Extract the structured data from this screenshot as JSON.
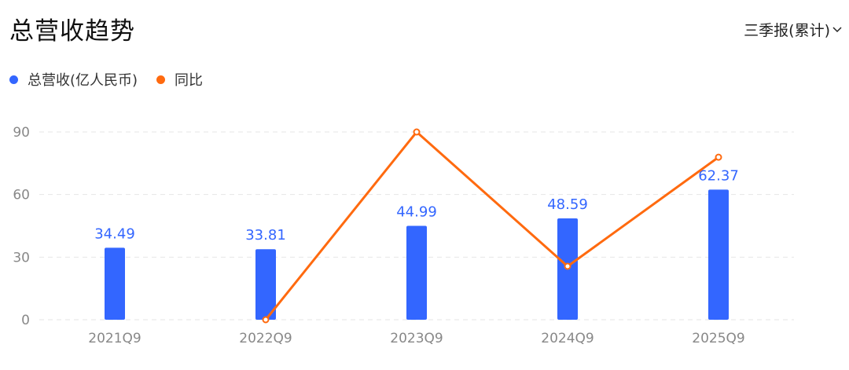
{
  "header": {
    "title": "总营收趋势",
    "period_selector": "三季报(累计)"
  },
  "colors": {
    "revenue": "#3366ff",
    "yoy": "#ff6a0f",
    "grid": "#e6e6e6",
    "axis_text": "#888888"
  },
  "chart_data": {
    "type": "bar+line",
    "categories": [
      "2021Q9",
      "2022Q9",
      "2023Q9",
      "2024Q9",
      "2025Q9"
    ],
    "yticks": [
      "0",
      "30",
      "60",
      "90"
    ],
    "ylim": [
      0,
      90
    ],
    "grid": true,
    "legend_position": "top-left",
    "series": [
      {
        "name": "总营收(亿人民币)",
        "type": "bar",
        "values": [
          34.49,
          33.81,
          44.99,
          48.59,
          62.37
        ],
        "labels": [
          "34.49",
          "33.81",
          "44.99",
          "48.59",
          "62.37"
        ]
      },
      {
        "name": "同比",
        "type": "line",
        "unit": "%",
        "values": [
          null,
          -1.97,
          33.07,
          8.0,
          28.36
        ]
      }
    ]
  }
}
